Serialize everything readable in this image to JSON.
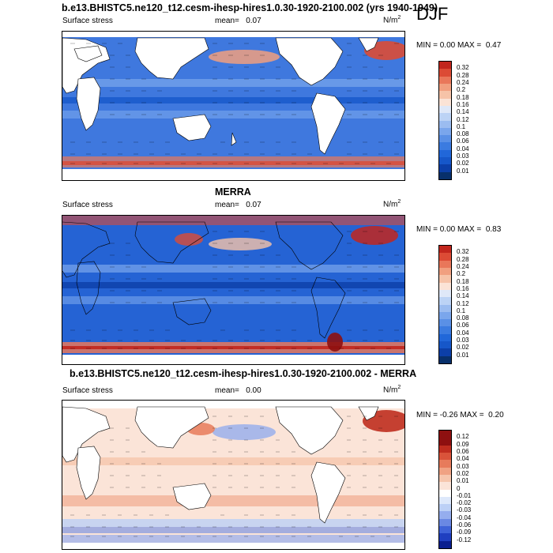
{
  "season": "DJF",
  "panels": [
    {
      "title": "b.e13.BHISTC5.ne120_t12.cesm-ihesp-hires1.0.30-1920-2100.002 (yrs 1940-1949)",
      "variable": "Surface stress",
      "mean_label": "mean=",
      "mean_value": "0.07",
      "units": "N/m",
      "units_exp": "2",
      "min_label": "MIN =",
      "min_value": "0.00",
      "max_label": "MAX =",
      "max_value": "0.47",
      "colorbar_ticks": [
        "0.32",
        "0.28",
        "0.24",
        "0.2",
        "0.18",
        "0.16",
        "0.14",
        "0.12",
        "0.1",
        "0.08",
        "0.06",
        "0.04",
        "0.03",
        "0.02",
        "0.01"
      ]
    },
    {
      "title": "MERRA",
      "variable": "Surface stress",
      "mean_label": "mean=",
      "mean_value": "0.07",
      "units": "N/m",
      "units_exp": "2",
      "min_label": "MIN =",
      "min_value": "0.00",
      "max_label": "MAX =",
      "max_value": "0.83",
      "colorbar_ticks": [
        "0.32",
        "0.28",
        "0.24",
        "0.2",
        "0.18",
        "0.16",
        "0.14",
        "0.12",
        "0.1",
        "0.08",
        "0.06",
        "0.04",
        "0.03",
        "0.02",
        "0.01"
      ]
    },
    {
      "title": "b.e13.BHISTC5.ne120_t12.cesm-ihesp-hires1.0.30-1920-2100.002 - MERRA",
      "variable": "Surface stress",
      "mean_label": "mean=",
      "mean_value": "0.00",
      "units": "N/m",
      "units_exp": "2",
      "min_label": "MIN =",
      "min_value": "-0.26",
      "max_label": "MAX =",
      "max_value": "0.20",
      "colorbar_ticks": [
        "0.12",
        "0.09",
        "0.06",
        "0.04",
        "0.03",
        "0.02",
        "0.01",
        "0",
        "-0.01",
        "-0.02",
        "-0.03",
        "-0.04",
        "-0.06",
        "-0.09",
        "-0.12"
      ]
    }
  ],
  "colors": {
    "abs_scale": [
      "#08306b",
      "#0c3fa8",
      "#1657c9",
      "#2167d9",
      "#3b7be0",
      "#5a90e6",
      "#7aa6ec",
      "#9bbcf0",
      "#bcd3f5",
      "#dfe8f8",
      "#fbe3d6",
      "#f6c3a8",
      "#f19f7f",
      "#e9775a",
      "#dc4b35",
      "#c2261d",
      "#8e0f0f"
    ],
    "diff_scale": [
      "#0a1f8f",
      "#1f3fc0",
      "#3f63d8",
      "#6a88e3",
      "#95adee",
      "#bcd0f6",
      "#dde8fb",
      "#ffffff",
      "#fbe4d8",
      "#f6c6ad",
      "#f0a283",
      "#e77b5b",
      "#d9533a",
      "#bf2d1f",
      "#8e1010"
    ]
  }
}
